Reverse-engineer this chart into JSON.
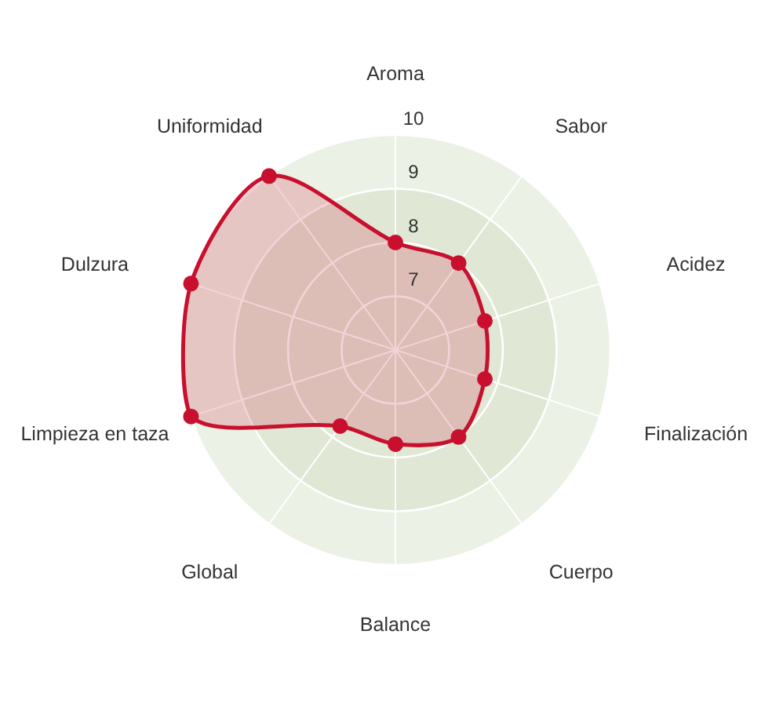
{
  "chart_data": {
    "type": "radar",
    "categories": [
      "Aroma",
      "Sabor",
      "Acidez",
      "Finalización",
      "Cuerpo",
      "Balance",
      "Global",
      "Limpieza en taza",
      "Dulzura",
      "Uniformidad"
    ],
    "series": [
      {
        "color": "#c8102e",
        "values": [
          8,
          8,
          7.75,
          7.75,
          8,
          7.75,
          7.75,
          10,
          10,
          10
        ]
      }
    ],
    "ylim": [
      6,
      10
    ],
    "yticks": [
      7,
      8,
      9,
      10
    ],
    "grid": true,
    "marker": "circle",
    "line_style": "solid"
  }
}
